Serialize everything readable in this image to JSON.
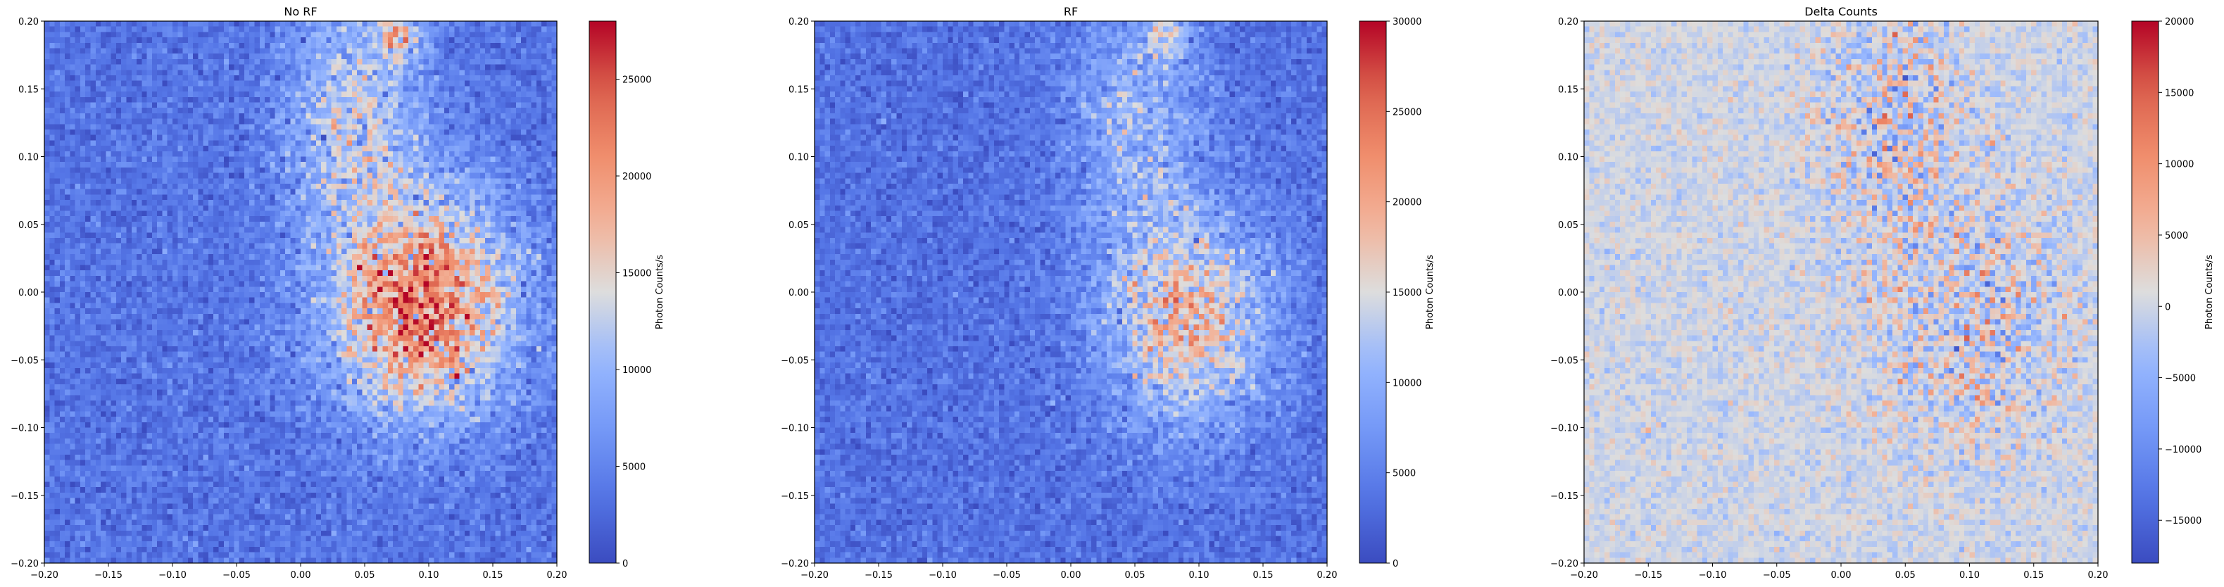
{
  "chart_data": [
    {
      "type": "heatmap",
      "title": "No RF",
      "xlabel": "",
      "ylabel": "",
      "xlim": [
        -0.2,
        0.2
      ],
      "ylim": [
        -0.2,
        0.2
      ],
      "x_ticks": [
        -0.2,
        -0.15,
        -0.1,
        -0.05,
        0.0,
        0.05,
        0.1,
        0.15,
        0.2
      ],
      "x_tick_labels": [
        "−0.20",
        "−0.15",
        "−0.10",
        "−0.05",
        "0.00",
        "0.05",
        "0.10",
        "0.15",
        "0.20"
      ],
      "y_ticks": [
        -0.2,
        -0.15,
        -0.1,
        -0.05,
        0.0,
        0.05,
        0.1,
        0.15,
        0.2
      ],
      "y_tick_labels": [
        "−0.20",
        "−0.15",
        "−0.10",
        "−0.05",
        "0.00",
        "0.05",
        "0.10",
        "0.15",
        "0.20"
      ],
      "colormap": "coolwarm",
      "colorbar": {
        "label": "Photon Counts/s",
        "range": [
          0,
          28000
        ],
        "ticks": [
          0,
          5000,
          10000,
          15000,
          20000,
          25000
        ],
        "tick_labels": [
          "0",
          "5000",
          "10000",
          "15000",
          "20000",
          "25000"
        ]
      },
      "grid": false,
      "features": [
        {
          "x": 0.095,
          "y": -0.01,
          "spread_x": 0.05,
          "spread_y": 0.055,
          "peak": 19000
        },
        {
          "x": 0.04,
          "y": 0.13,
          "spread_x": 0.035,
          "spread_y": 0.06,
          "peak": 9000
        },
        {
          "x": 0.075,
          "y": 0.19,
          "spread_x": 0.012,
          "spread_y": 0.012,
          "peak": 12000
        }
      ],
      "background_level": 3500
    },
    {
      "type": "heatmap",
      "title": "RF",
      "xlabel": "",
      "ylabel": "",
      "xlim": [
        -0.2,
        0.2
      ],
      "ylim": [
        -0.2,
        0.2
      ],
      "x_ticks": [
        -0.2,
        -0.15,
        -0.1,
        -0.05,
        0.0,
        0.05,
        0.1,
        0.15,
        0.2
      ],
      "x_tick_labels": [
        "−0.20",
        "−0.15",
        "−0.10",
        "−0.05",
        "0.00",
        "0.05",
        "0.10",
        "0.15",
        "0.20"
      ],
      "y_ticks": [
        -0.2,
        -0.15,
        -0.1,
        -0.05,
        0.0,
        0.05,
        0.1,
        0.15,
        0.2
      ],
      "y_tick_labels": [
        "−0.20",
        "−0.15",
        "−0.10",
        "−0.05",
        "0.00",
        "0.05",
        "0.10",
        "0.15",
        "0.20"
      ],
      "colormap": "coolwarm",
      "colorbar": {
        "label": "Photon Counts/s",
        "range": [
          0,
          30000
        ],
        "ticks": [
          0,
          5000,
          10000,
          15000,
          20000,
          25000,
          30000
        ],
        "tick_labels": [
          "0",
          "5000",
          "10000",
          "15000",
          "20000",
          "25000",
          "30000"
        ]
      },
      "grid": false,
      "features": [
        {
          "x": 0.09,
          "y": -0.02,
          "spread_x": 0.045,
          "spread_y": 0.055,
          "peak": 14000
        },
        {
          "x": 0.05,
          "y": 0.13,
          "spread_x": 0.035,
          "spread_y": 0.06,
          "peak": 7000
        },
        {
          "x": 0.075,
          "y": 0.19,
          "spread_x": 0.012,
          "spread_y": 0.012,
          "peak": 9000
        }
      ],
      "background_level": 3500
    },
    {
      "type": "heatmap",
      "title": "Delta Counts",
      "xlabel": "",
      "ylabel": "",
      "xlim": [
        -0.2,
        0.2
      ],
      "ylim": [
        -0.2,
        0.2
      ],
      "x_ticks": [
        -0.2,
        -0.15,
        -0.1,
        -0.05,
        0.0,
        0.05,
        0.1,
        0.15,
        0.2
      ],
      "x_tick_labels": [
        "−0.20",
        "−0.15",
        "−0.10",
        "−0.05",
        "0.00",
        "0.05",
        "0.10",
        "0.15",
        "0.20"
      ],
      "y_ticks": [
        -0.2,
        -0.15,
        -0.1,
        -0.05,
        0.0,
        0.05,
        0.1,
        0.15,
        0.2
      ],
      "y_tick_labels": [
        "−0.20",
        "−0.15",
        "−0.10",
        "−0.05",
        "0.00",
        "0.05",
        "0.10",
        "0.15",
        "0.20"
      ],
      "colormap": "coolwarm",
      "colorbar": {
        "label": "Photon Counts/s",
        "range": [
          -18000,
          20000
        ],
        "ticks": [
          -15000,
          -10000,
          -5000,
          0,
          5000,
          10000,
          15000,
          20000
        ],
        "tick_labels": [
          "−15000",
          "−10000",
          "−5000",
          "0",
          "5000",
          "10000",
          "15000",
          "20000"
        ]
      },
      "grid": false,
      "features": [
        {
          "x": 0.1,
          "y": -0.02,
          "spread_x": 0.05,
          "spread_y": 0.06,
          "peak": 0
        },
        {
          "x": 0.04,
          "y": 0.13,
          "spread_x": 0.035,
          "spread_y": 0.06,
          "peak": 0
        }
      ],
      "background_level": 0
    }
  ]
}
